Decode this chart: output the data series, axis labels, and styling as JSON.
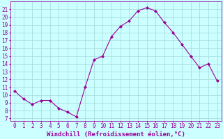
{
  "x": [
    0,
    1,
    2,
    3,
    4,
    5,
    6,
    7,
    8,
    9,
    10,
    11,
    12,
    13,
    14,
    15,
    16,
    17,
    18,
    19,
    20,
    21,
    22,
    23
  ],
  "y": [
    10.5,
    9.5,
    8.8,
    9.3,
    9.3,
    8.3,
    7.8,
    7.2,
    11.0,
    14.5,
    15.0,
    17.5,
    18.8,
    19.5,
    20.8,
    21.2,
    20.8,
    19.3,
    18.0,
    16.5,
    15.0,
    13.5,
    14.0,
    11.8
  ],
  "line_color": "#990099",
  "marker": "D",
  "marker_size": 2.0,
  "bg_color": "#ccffff",
  "grid_color": "#aadddd",
  "xlabel": "Windchill (Refroidissement éolien,°C)",
  "ylabel_ticks": [
    7,
    8,
    9,
    10,
    11,
    12,
    13,
    14,
    15,
    16,
    17,
    18,
    19,
    20,
    21
  ],
  "xlim": [
    -0.5,
    23.5
  ],
  "ylim": [
    6.7,
    22.0
  ],
  "xlabel_color": "#990099",
  "tick_color": "#990099",
  "axis_label_fontsize": 6.5,
  "tick_fontsize": 5.5
}
